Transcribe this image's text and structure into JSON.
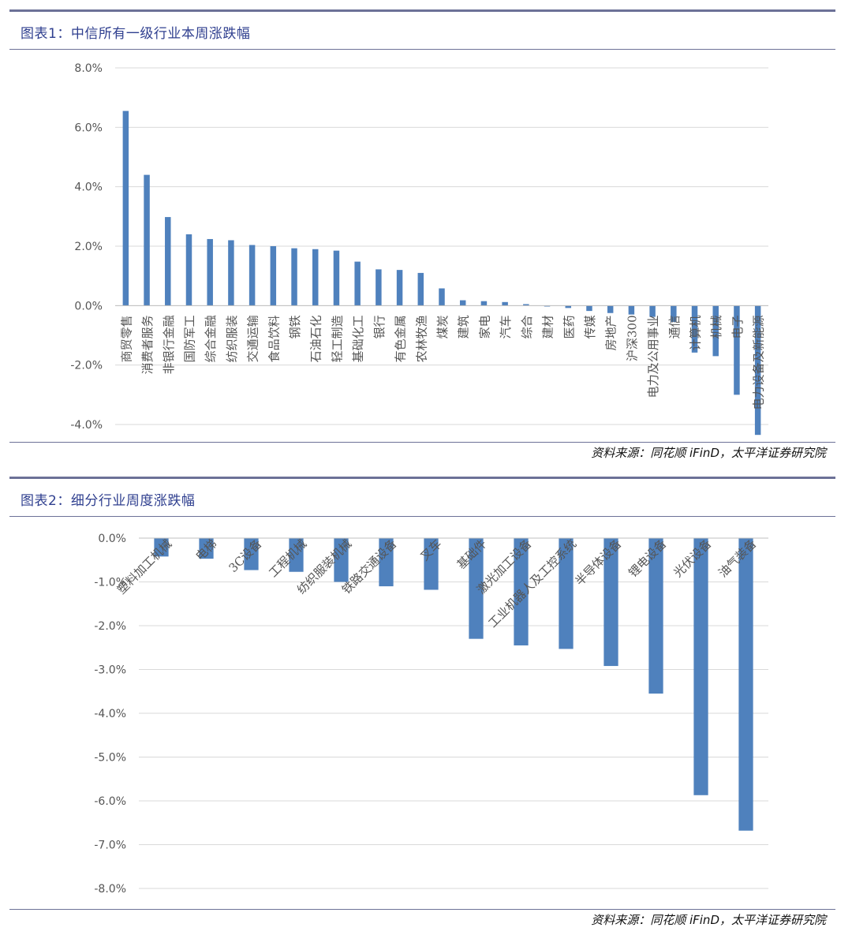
{
  "chart_data": [
    {
      "type": "bar",
      "title": "图表1：中信所有一级行业本周涨跌幅",
      "source": "资料来源：同花顺 iFinD，太平洋证券研究院",
      "ylim": [
        -4,
        8
      ],
      "yticks": [
        "8.0%",
        "6.0%",
        "4.0%",
        "2.0%",
        "0.0%",
        "-2.0%",
        "-4.0%"
      ],
      "grid": true,
      "legend": "none",
      "color": "#4f81bd",
      "categories": [
        "商贸零售",
        "消费者服务",
        "非银行金融",
        "国防军工",
        "综合金融",
        "纺织服装",
        "交通运输",
        "食品饮料",
        "钢铁",
        "石油石化",
        "轻工制造",
        "基础化工",
        "银行",
        "有色金属",
        "农林牧渔",
        "煤炭",
        "建筑",
        "家电",
        "汽车",
        "综合",
        "建材",
        "医药",
        "传媒",
        "房地产",
        "沪深300",
        "电力及公用事业",
        "通信",
        "计算机",
        "机械",
        "电子",
        "电力设备及新能源"
      ],
      "values": [
        6.55,
        4.4,
        2.98,
        2.4,
        2.24,
        2.2,
        2.04,
        2.0,
        1.93,
        1.9,
        1.85,
        1.48,
        1.22,
        1.2,
        1.1,
        0.58,
        0.18,
        0.15,
        0.12,
        0.05,
        -0.03,
        -0.08,
        -0.18,
        -0.25,
        -0.3,
        -0.38,
        -0.55,
        -1.58,
        -1.7,
        -3.0,
        -4.35
      ]
    },
    {
      "type": "bar",
      "title": "图表2：细分行业周度涨跌幅",
      "source": "资料来源：同花顺 iFinD，太平洋证券研究院",
      "ylim": [
        -8,
        0
      ],
      "yticks": [
        "0.0%",
        "-1.0%",
        "-2.0%",
        "-3.0%",
        "-4.0%",
        "-5.0%",
        "-6.0%",
        "-7.0%",
        "-8.0%"
      ],
      "grid": true,
      "legend": "none",
      "color": "#4f81bd",
      "categories": [
        "塑料加工机械",
        "电梯",
        "3C设备",
        "工程机械",
        "纺织服装机械",
        "铁路交通设备",
        "叉车",
        "基础件",
        "激光加工设备",
        "工业机器人及工控系统",
        "半导体设备",
        "锂电设备",
        "光伏设备",
        "油气装备"
      ],
      "values": [
        -0.42,
        -0.47,
        -0.73,
        -0.77,
        -1.0,
        -1.1,
        -1.18,
        -2.3,
        -2.45,
        -2.53,
        -2.92,
        -3.55,
        -5.87,
        -6.68
      ]
    }
  ]
}
